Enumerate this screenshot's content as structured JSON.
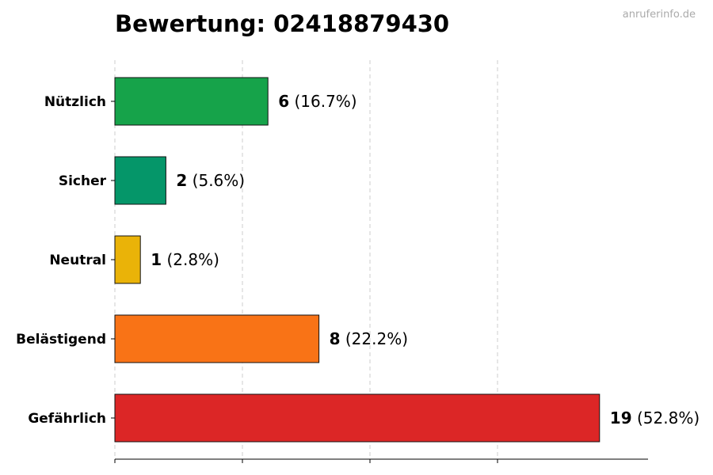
{
  "chart_data": {
    "type": "bar",
    "orientation": "horizontal",
    "title": "Bewertung: 02418879430",
    "watermark": "anruferinfo.de",
    "categories": [
      "Nützlich",
      "Sicher",
      "Neutral",
      "Belästigend",
      "Gefährlich"
    ],
    "values": [
      6,
      2,
      1,
      8,
      19
    ],
    "percent_labels": [
      "(16.7%)",
      "(5.6%)",
      "(2.8%)",
      "(22.2%)",
      "(52.8%)"
    ],
    "colors": [
      "#16a34a",
      "#059669",
      "#eab308",
      "#f97316",
      "#dc2626"
    ],
    "xlim": [
      0,
      21
    ],
    "grid": true,
    "xlabel": "",
    "ylabel": ""
  }
}
